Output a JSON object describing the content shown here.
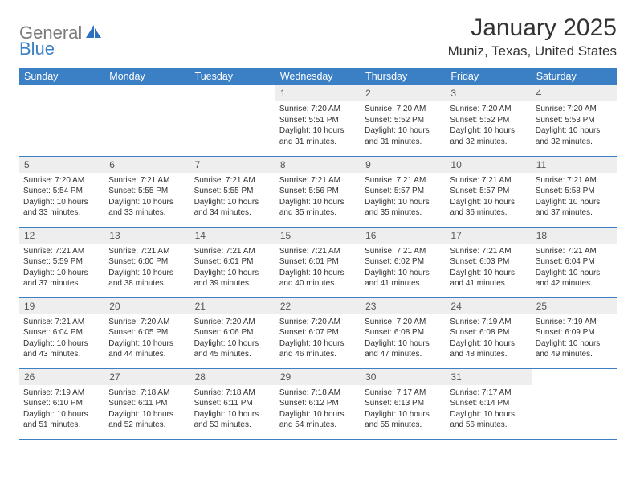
{
  "brand": {
    "text1": "General",
    "text2": "Blue",
    "logo_color": "#2a6fc0"
  },
  "title": "January 2025",
  "location": "Muniz, Texas, United States",
  "colors": {
    "header_bg": "#3b7fc4",
    "header_fg": "#ffffff",
    "daynum_bg": "#eeeeee",
    "text": "#333333",
    "border": "#3b7fc4"
  },
  "weekdays": [
    "Sunday",
    "Monday",
    "Tuesday",
    "Wednesday",
    "Thursday",
    "Friday",
    "Saturday"
  ],
  "weeks": [
    [
      null,
      null,
      null,
      {
        "n": "1",
        "sr": "7:20 AM",
        "ss": "5:51 PM",
        "dl": "10 hours and 31 minutes."
      },
      {
        "n": "2",
        "sr": "7:20 AM",
        "ss": "5:52 PM",
        "dl": "10 hours and 31 minutes."
      },
      {
        "n": "3",
        "sr": "7:20 AM",
        "ss": "5:52 PM",
        "dl": "10 hours and 32 minutes."
      },
      {
        "n": "4",
        "sr": "7:20 AM",
        "ss": "5:53 PM",
        "dl": "10 hours and 32 minutes."
      }
    ],
    [
      {
        "n": "5",
        "sr": "7:20 AM",
        "ss": "5:54 PM",
        "dl": "10 hours and 33 minutes."
      },
      {
        "n": "6",
        "sr": "7:21 AM",
        "ss": "5:55 PM",
        "dl": "10 hours and 33 minutes."
      },
      {
        "n": "7",
        "sr": "7:21 AM",
        "ss": "5:55 PM",
        "dl": "10 hours and 34 minutes."
      },
      {
        "n": "8",
        "sr": "7:21 AM",
        "ss": "5:56 PM",
        "dl": "10 hours and 35 minutes."
      },
      {
        "n": "9",
        "sr": "7:21 AM",
        "ss": "5:57 PM",
        "dl": "10 hours and 35 minutes."
      },
      {
        "n": "10",
        "sr": "7:21 AM",
        "ss": "5:57 PM",
        "dl": "10 hours and 36 minutes."
      },
      {
        "n": "11",
        "sr": "7:21 AM",
        "ss": "5:58 PM",
        "dl": "10 hours and 37 minutes."
      }
    ],
    [
      {
        "n": "12",
        "sr": "7:21 AM",
        "ss": "5:59 PM",
        "dl": "10 hours and 37 minutes."
      },
      {
        "n": "13",
        "sr": "7:21 AM",
        "ss": "6:00 PM",
        "dl": "10 hours and 38 minutes."
      },
      {
        "n": "14",
        "sr": "7:21 AM",
        "ss": "6:01 PM",
        "dl": "10 hours and 39 minutes."
      },
      {
        "n": "15",
        "sr": "7:21 AM",
        "ss": "6:01 PM",
        "dl": "10 hours and 40 minutes."
      },
      {
        "n": "16",
        "sr": "7:21 AM",
        "ss": "6:02 PM",
        "dl": "10 hours and 41 minutes."
      },
      {
        "n": "17",
        "sr": "7:21 AM",
        "ss": "6:03 PM",
        "dl": "10 hours and 41 minutes."
      },
      {
        "n": "18",
        "sr": "7:21 AM",
        "ss": "6:04 PM",
        "dl": "10 hours and 42 minutes."
      }
    ],
    [
      {
        "n": "19",
        "sr": "7:21 AM",
        "ss": "6:04 PM",
        "dl": "10 hours and 43 minutes."
      },
      {
        "n": "20",
        "sr": "7:20 AM",
        "ss": "6:05 PM",
        "dl": "10 hours and 44 minutes."
      },
      {
        "n": "21",
        "sr": "7:20 AM",
        "ss": "6:06 PM",
        "dl": "10 hours and 45 minutes."
      },
      {
        "n": "22",
        "sr": "7:20 AM",
        "ss": "6:07 PM",
        "dl": "10 hours and 46 minutes."
      },
      {
        "n": "23",
        "sr": "7:20 AM",
        "ss": "6:08 PM",
        "dl": "10 hours and 47 minutes."
      },
      {
        "n": "24",
        "sr": "7:19 AM",
        "ss": "6:08 PM",
        "dl": "10 hours and 48 minutes."
      },
      {
        "n": "25",
        "sr": "7:19 AM",
        "ss": "6:09 PM",
        "dl": "10 hours and 49 minutes."
      }
    ],
    [
      {
        "n": "26",
        "sr": "7:19 AM",
        "ss": "6:10 PM",
        "dl": "10 hours and 51 minutes."
      },
      {
        "n": "27",
        "sr": "7:18 AM",
        "ss": "6:11 PM",
        "dl": "10 hours and 52 minutes."
      },
      {
        "n": "28",
        "sr": "7:18 AM",
        "ss": "6:11 PM",
        "dl": "10 hours and 53 minutes."
      },
      {
        "n": "29",
        "sr": "7:18 AM",
        "ss": "6:12 PM",
        "dl": "10 hours and 54 minutes."
      },
      {
        "n": "30",
        "sr": "7:17 AM",
        "ss": "6:13 PM",
        "dl": "10 hours and 55 minutes."
      },
      {
        "n": "31",
        "sr": "7:17 AM",
        "ss": "6:14 PM",
        "dl": "10 hours and 56 minutes."
      },
      null
    ]
  ],
  "labels": {
    "sunrise": "Sunrise:",
    "sunset": "Sunset:",
    "daylight": "Daylight:"
  }
}
